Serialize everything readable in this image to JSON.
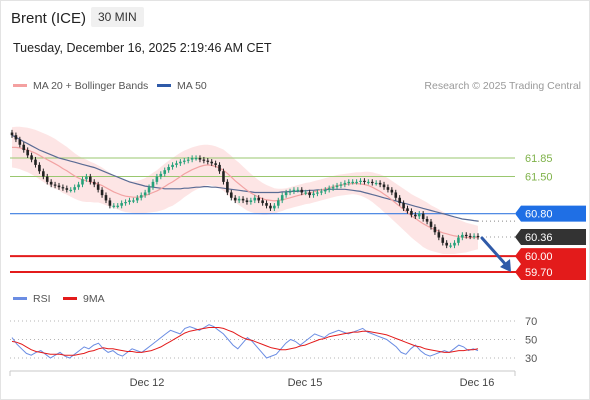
{
  "header": {
    "instrument": "Brent (ICE)",
    "timeframe": "30 MIN",
    "timestamp": "Tuesday, December 16, 2025 2:19:46 AM CET"
  },
  "legend": {
    "ma20": "MA 20 + Bollinger Bands",
    "ma50": "MA 50",
    "credit": "Research © 2025 Trading Central",
    "rsi": "RSI",
    "rsi_ma": "9MA"
  },
  "colors": {
    "up": "#27a17a",
    "down": "#222222",
    "band_fill": "#fde0e0",
    "ma20": "#f2a3a3",
    "ma50": "#5a6b94",
    "resistance": "#9ac76f",
    "support": "#e31b1b",
    "pivot": "#3a7be0",
    "last_price": "#333333",
    "rsi": "#6b8de3",
    "rsi_ma": "#e31b1b",
    "arrow": "#2f5aa8"
  },
  "chart_data": [
    {
      "type": "candlestick",
      "title": "Brent (ICE) 30 MIN",
      "x_labels": [
        "Dec 12",
        "Dec 15",
        "Dec 16"
      ],
      "ylim": [
        59.4,
        62.6
      ],
      "levels": [
        {
          "value": 61.85,
          "label": "61.85",
          "kind": "resistance"
        },
        {
          "value": 61.5,
          "label": "61.50",
          "kind": "resistance"
        },
        {
          "value": 60.8,
          "label": "60.80",
          "kind": "pivot"
        },
        {
          "value": 60.36,
          "label": "60.36",
          "kind": "last"
        },
        {
          "value": 60.0,
          "label": "60.00",
          "kind": "support"
        },
        {
          "value": 59.7,
          "label": "59.70",
          "kind": "support"
        }
      ],
      "close": [
        62.28,
        62.2,
        62.1,
        62.0,
        61.9,
        61.82,
        61.72,
        61.6,
        61.5,
        61.4,
        61.35,
        61.33,
        61.3,
        61.28,
        61.25,
        61.25,
        61.3,
        61.35,
        61.45,
        61.5,
        61.4,
        61.35,
        61.25,
        61.15,
        61.05,
        60.95,
        60.95,
        60.95,
        61.0,
        61.02,
        61.05,
        61.05,
        61.1,
        61.15,
        61.2,
        61.3,
        61.4,
        61.5,
        61.55,
        61.62,
        61.68,
        61.72,
        61.75,
        61.78,
        61.8,
        61.82,
        61.85,
        61.85,
        61.82,
        61.8,
        61.78,
        61.75,
        61.72,
        61.6,
        61.4,
        61.2,
        61.1,
        61.05,
        61.08,
        61.05,
        61.02,
        61.05,
        61.1,
        61.05,
        61.0,
        60.95,
        60.9,
        60.95,
        61.05,
        61.15,
        61.2,
        61.22,
        61.25,
        61.25,
        61.2,
        61.2,
        61.15,
        61.18,
        61.2,
        61.22,
        61.25,
        61.28,
        61.3,
        61.33,
        61.35,
        61.38,
        61.4,
        61.4,
        61.4,
        61.42,
        61.4,
        61.4,
        61.38,
        61.38,
        61.35,
        61.3,
        61.25,
        61.2,
        61.1,
        61.0,
        60.9,
        60.85,
        60.78,
        60.75,
        60.8,
        60.7,
        60.65,
        60.55,
        60.45,
        60.35,
        60.25,
        60.2,
        60.2,
        60.25,
        60.35,
        60.4,
        60.38,
        60.37,
        60.38,
        60.36
      ],
      "ma20": [
        62.05,
        62.05,
        62.04,
        62.02,
        62.0,
        61.97,
        61.94,
        61.9,
        61.86,
        61.82,
        61.78,
        61.74,
        61.7,
        61.65,
        61.61,
        61.56,
        61.51,
        61.47,
        61.44,
        61.42,
        61.4,
        61.38,
        61.36,
        61.33,
        61.29,
        61.25,
        61.21,
        61.18,
        61.15,
        61.13,
        61.12,
        61.11,
        61.11,
        61.12,
        61.14,
        61.17,
        61.2,
        61.23,
        61.27,
        61.31,
        61.36,
        61.4,
        61.45,
        61.5,
        61.55,
        61.59,
        61.63,
        61.66,
        61.69,
        61.71,
        61.72,
        61.71,
        61.69,
        61.66,
        61.62,
        61.56,
        61.49,
        61.42,
        61.36,
        61.3,
        61.24,
        61.19,
        61.15,
        61.11,
        61.08,
        61.06,
        61.05,
        61.04,
        61.05,
        61.06,
        61.08,
        61.1,
        61.12,
        61.14,
        61.16,
        61.18,
        61.19,
        61.21,
        61.23,
        61.25,
        61.27,
        61.29,
        61.31,
        61.33,
        61.34,
        61.35,
        61.36,
        61.37,
        61.37,
        61.36,
        61.35,
        61.33,
        61.3,
        61.26,
        61.22,
        61.17,
        61.12,
        61.06,
        61.0,
        60.94,
        60.88,
        60.82,
        60.76,
        60.71,
        60.66,
        60.61,
        60.57,
        60.53,
        60.5,
        60.47,
        60.44,
        60.42,
        60.4,
        60.38,
        60.37,
        60.36,
        60.35,
        60.35,
        60.35,
        60.35
      ],
      "ma50": [
        62.28,
        62.24,
        62.2,
        62.16,
        62.12,
        62.08,
        62.04,
        62.0,
        61.97,
        61.94,
        61.91,
        61.88,
        61.85,
        61.83,
        61.81,
        61.79,
        61.77,
        61.75,
        61.73,
        61.71,
        61.69,
        61.67,
        61.64,
        61.61,
        61.58,
        61.55,
        61.52,
        61.49,
        61.46,
        61.43,
        61.4,
        61.38,
        61.36,
        61.34,
        61.32,
        61.31,
        61.3,
        61.29,
        61.28,
        61.27,
        61.27,
        61.27,
        61.27,
        61.27,
        61.28,
        61.28,
        61.29,
        61.3,
        61.3,
        61.31,
        61.31,
        61.3,
        61.3,
        61.29,
        61.28,
        61.27,
        61.26,
        61.25,
        61.24,
        61.23,
        61.22,
        61.21,
        61.2,
        61.2,
        61.2,
        61.2,
        61.2,
        61.2,
        61.2,
        61.21,
        61.21,
        61.22,
        61.22,
        61.22,
        61.23,
        61.23,
        61.24,
        61.24,
        61.25,
        61.25,
        61.25,
        61.26,
        61.26,
        61.26,
        61.26,
        61.26,
        61.25,
        61.24,
        61.23,
        61.22,
        61.2,
        61.18,
        61.16,
        61.14,
        61.12,
        61.1,
        61.08,
        61.06,
        61.04,
        61.02,
        61.0,
        60.98,
        60.96,
        60.94,
        60.92,
        60.9,
        60.88,
        60.86,
        60.84,
        60.82,
        60.8,
        60.78,
        60.76,
        60.74,
        60.72,
        60.7,
        60.69,
        60.68,
        60.67,
        60.66
      ],
      "band_width": [
        0.38,
        0.39,
        0.4,
        0.41,
        0.42,
        0.43,
        0.44,
        0.45,
        0.46,
        0.47,
        0.47,
        0.47,
        0.46,
        0.46,
        0.45,
        0.44,
        0.43,
        0.42,
        0.41,
        0.4,
        0.38,
        0.37,
        0.35,
        0.34,
        0.33,
        0.32,
        0.31,
        0.3,
        0.3,
        0.3,
        0.3,
        0.3,
        0.31,
        0.32,
        0.33,
        0.35,
        0.37,
        0.39,
        0.41,
        0.43,
        0.44,
        0.45,
        0.45,
        0.45,
        0.44,
        0.43,
        0.42,
        0.41,
        0.4,
        0.39,
        0.38,
        0.38,
        0.38,
        0.38,
        0.39,
        0.39,
        0.4,
        0.4,
        0.4,
        0.39,
        0.38,
        0.36,
        0.34,
        0.32,
        0.3,
        0.28,
        0.26,
        0.24,
        0.22,
        0.21,
        0.2,
        0.2,
        0.2,
        0.2,
        0.2,
        0.2,
        0.2,
        0.2,
        0.2,
        0.2,
        0.2,
        0.2,
        0.2,
        0.2,
        0.2,
        0.2,
        0.2,
        0.2,
        0.21,
        0.22,
        0.24,
        0.26,
        0.28,
        0.3,
        0.32,
        0.34,
        0.35,
        0.36,
        0.37,
        0.38,
        0.39,
        0.4,
        0.41,
        0.42,
        0.43,
        0.44,
        0.44,
        0.43,
        0.42,
        0.41,
        0.4,
        0.38,
        0.36,
        0.34,
        0.32,
        0.3,
        0.28,
        0.26,
        0.24,
        0.22
      ]
    },
    {
      "type": "line",
      "title": "RSI",
      "ylim": [
        20,
        75
      ],
      "ticks": [
        {
          "value": 70,
          "label": "70"
        },
        {
          "value": 50,
          "label": "50"
        },
        {
          "value": 30,
          "label": "30"
        }
      ],
      "rsi": [
        52,
        45,
        40,
        35,
        33,
        36,
        38,
        34,
        30,
        33,
        36,
        32,
        30,
        34,
        38,
        42,
        40,
        44,
        46,
        40,
        36,
        38,
        34,
        32,
        36,
        40,
        38,
        36,
        40,
        44,
        48,
        52,
        56,
        60,
        58,
        56,
        62,
        64,
        62,
        60,
        63,
        66,
        64,
        60,
        56,
        50,
        44,
        40,
        46,
        52,
        48,
        42,
        36,
        30,
        32,
        34,
        40,
        46,
        50,
        48,
        44,
        48,
        52,
        56,
        54,
        52,
        56,
        58,
        60,
        58,
        56,
        58,
        60,
        62,
        58,
        56,
        54,
        52,
        50,
        46,
        42,
        36,
        34,
        40,
        44,
        38,
        34,
        32,
        34,
        36,
        38,
        36,
        40,
        44,
        42,
        38,
        40,
        38
      ],
      "ma9": [
        48,
        47,
        45,
        42,
        39,
        37,
        36,
        35,
        34,
        34,
        34,
        33,
        33,
        33,
        34,
        35,
        37,
        38,
        40,
        41,
        40,
        40,
        39,
        38,
        37,
        37,
        36,
        36,
        37,
        38,
        40,
        42,
        45,
        48,
        51,
        54,
        57,
        59,
        60,
        61,
        62,
        63,
        63,
        63,
        62,
        60,
        58,
        55,
        52,
        50,
        49,
        47,
        45,
        43,
        41,
        40,
        39,
        39,
        40,
        41,
        43,
        44,
        46,
        48,
        50,
        51,
        53,
        54,
        55,
        56,
        57,
        58,
        58,
        59,
        59,
        58,
        57,
        56,
        55,
        53,
        51,
        49,
        47,
        45,
        43,
        42,
        40,
        39,
        38,
        37,
        36,
        36,
        37,
        38,
        38,
        39,
        39,
        40
      ]
    }
  ]
}
